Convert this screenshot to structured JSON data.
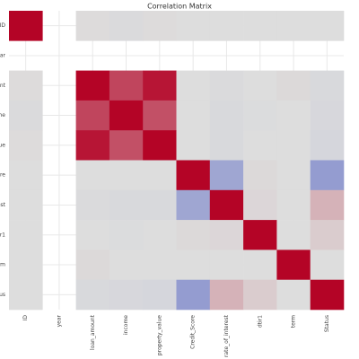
{
  "chart_data": {
    "type": "heatmap",
    "title": "Correlation Matrix",
    "categories": [
      "ID",
      "year",
      "loan_amount",
      "income",
      "property_value",
      "Credit_Score",
      "rate_of_interest",
      "dtir1",
      "term",
      "Status"
    ],
    "z": [
      [
        1,
        null,
        0.01,
        -0.02,
        0.01,
        0,
        0,
        0,
        0,
        0
      ],
      [
        null,
        null,
        null,
        null,
        null,
        null,
        null,
        null,
        null,
        null
      ],
      [
        0.01,
        null,
        1,
        0.7,
        0.92,
        0,
        -0.02,
        0,
        0.02,
        -0.03
      ],
      [
        -0.02,
        null,
        0.7,
        1,
        0.65,
        0,
        -0.03,
        -0.01,
        0,
        -0.04
      ],
      [
        0.01,
        null,
        0.92,
        0.65,
        1,
        0,
        -0.03,
        0,
        0,
        -0.05
      ],
      [
        0,
        null,
        0,
        0,
        0,
        1,
        -0.38,
        0.02,
        0,
        -0.45
      ],
      [
        0,
        null,
        -0.02,
        -0.03,
        -0.03,
        -0.38,
        1,
        0.03,
        0,
        0.2
      ],
      [
        0,
        null,
        0,
        -0.01,
        0,
        0.02,
        0.03,
        1,
        0,
        0.08
      ],
      [
        0,
        null,
        0.02,
        0,
        0,
        0,
        0,
        0,
        1,
        0
      ],
      [
        0,
        null,
        -0.03,
        -0.04,
        -0.05,
        -0.45,
        0.2,
        0.08,
        0,
        1
      ]
    ],
    "zlim": [
      -1,
      1
    ],
    "colors": [
      "#3b4cc0",
      "#dddddd",
      "#b40426"
    ],
    "grid": true
  }
}
